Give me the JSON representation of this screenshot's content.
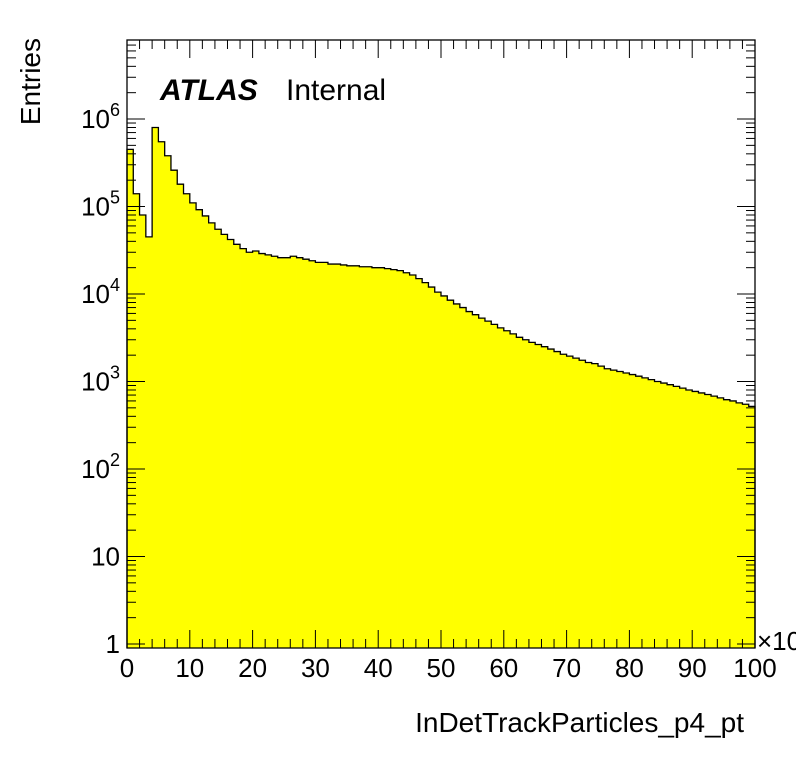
{
  "chart_data": {
    "type": "bar",
    "title": "",
    "xlabel": "InDetTrackParticles_p4_pt",
    "ylabel": "Entries",
    "x_multiplier_label": "×10",
    "xlim": [
      0,
      100
    ],
    "ylim": [
      0.9,
      8000000
    ],
    "yscale": "log",
    "fill_color": "#ffff00",
    "line_color": "#000000",
    "annotation": {
      "bold_italic": "ATLAS",
      "plain": "Internal"
    },
    "x_ticks": [
      0,
      10,
      20,
      30,
      40,
      50,
      60,
      70,
      80,
      90,
      100
    ],
    "x_tick_labels": [
      "0",
      "10",
      "20",
      "30",
      "40",
      "50",
      "60",
      "70",
      "80",
      "90",
      "100"
    ],
    "y_ticks": [
      {
        "value": 1,
        "base": "1",
        "exp": ""
      },
      {
        "value": 10,
        "base": "10",
        "exp": ""
      },
      {
        "value": 100,
        "base": "10",
        "exp": "2"
      },
      {
        "value": 1000,
        "base": "10",
        "exp": "3"
      },
      {
        "value": 10000,
        "base": "10",
        "exp": "4"
      },
      {
        "value": 100000,
        "base": "10",
        "exp": "5"
      },
      {
        "value": 1000000,
        "base": "10",
        "exp": "6"
      }
    ],
    "bin_width": 1,
    "values": [
      450000,
      140000,
      80000,
      45000,
      800000,
      550000,
      380000,
      260000,
      180000,
      140000,
      110000,
      92000,
      78000,
      65000,
      55000,
      48000,
      42000,
      37000,
      33000,
      30000,
      31000,
      29000,
      28000,
      27000,
      26000,
      26000,
      27000,
      26000,
      25000,
      24000,
      23000,
      23000,
      22000,
      22000,
      21500,
      21000,
      21000,
      20500,
      20500,
      20000,
      20000,
      19500,
      19000,
      18500,
      17500,
      16500,
      15000,
      13500,
      12000,
      10500,
      9500,
      8500,
      7700,
      7000,
      6300,
      5800,
      5300,
      4900,
      4500,
      4100,
      3800,
      3500,
      3200,
      3000,
      2800,
      2650,
      2500,
      2350,
      2200,
      2050,
      1950,
      1850,
      1750,
      1650,
      1600,
      1500,
      1400,
      1350,
      1300,
      1250,
      1200,
      1150,
      1100,
      1050,
      1000,
      960,
      920,
      880,
      840,
      800,
      770,
      740,
      710,
      680,
      650,
      620,
      600,
      570,
      550,
      520
    ]
  }
}
